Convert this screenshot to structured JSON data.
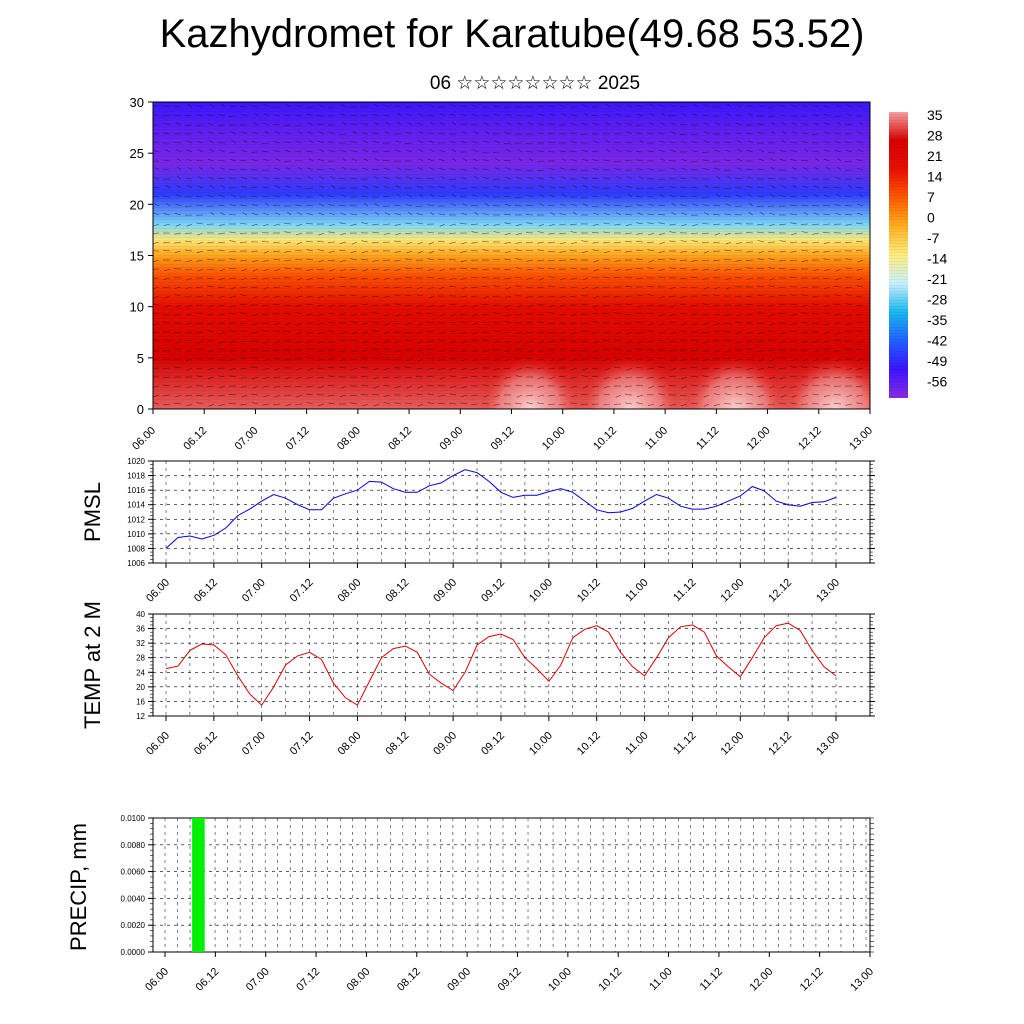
{
  "header": {
    "title": "Kazhydromet for Karatube(49.68 53.52)",
    "subtitle": "06 ☆☆☆☆☆☆☆☆ 2025"
  },
  "colors": {
    "pmsl_line": "#0000dd",
    "temp_line": "#dd0000",
    "precip_bar": "#00ee00",
    "colorbar_stops": [
      "#8a2be2",
      "#3c14ff",
      "#2060ff",
      "#18b8f0",
      "#c8f0ff",
      "#ffee80",
      "#ffb020",
      "#ff5a00",
      "#e81000",
      "#d80000",
      "#f5a0a0"
    ]
  },
  "time_ticks": [
    "06.00",
    "06.12",
    "07.00",
    "07.12",
    "08.00",
    "08.12",
    "09.00",
    "09.12",
    "10.00",
    "10.12",
    "11.00",
    "11.12",
    "12.00",
    "12.12",
    "13.00"
  ],
  "chart_data": [
    {
      "type": "heatmap",
      "id": "cross-section",
      "description_axis": "height",
      "ylim": [
        0,
        30
      ],
      "yticks": [
        0,
        5,
        10,
        15,
        20,
        25,
        30
      ],
      "x": [
        "06.00",
        "06.12",
        "07.00",
        "07.12",
        "08.00",
        "08.12",
        "09.00",
        "09.12",
        "10.00",
        "10.12",
        "11.00",
        "11.12",
        "12.00",
        "12.12",
        "13.00"
      ],
      "colorbar_labels": [
        "35",
        "28",
        "21",
        "14",
        "7",
        "0",
        "-7",
        "-14",
        "-21",
        "-28",
        "-35",
        "-42",
        "-49",
        "-56"
      ],
      "temperature_profile": {
        "heights": [
          0,
          5,
          10,
          13,
          15,
          16.5,
          18,
          21,
          24,
          27,
          30
        ],
        "values": [
          34,
          28,
          20,
          10,
          0,
          -10,
          -25,
          -45,
          -58,
          -55,
          -50
        ]
      },
      "overlay": "wind barbs"
    },
    {
      "type": "line",
      "id": "pmsl",
      "ylabel": "PMSL",
      "ylim": [
        1006,
        1020
      ],
      "yticks": [
        1006,
        1008,
        1010,
        1012,
        1014,
        1016,
        1018,
        1020
      ],
      "xticks": [
        "06.00",
        "06.12",
        "07.00",
        "07.12",
        "08.00",
        "08.12",
        "09.00",
        "09.12",
        "10.00",
        "10.12",
        "11.00",
        "11.12",
        "12.00",
        "12.12",
        "13.00"
      ],
      "series": [
        {
          "x_hours": [
            0,
            3,
            6,
            9,
            12,
            15,
            18,
            21,
            24,
            27,
            30,
            33,
            36,
            39,
            42,
            45,
            48,
            51,
            54,
            57,
            60,
            63,
            66,
            69,
            72,
            75,
            78,
            81,
            84,
            87,
            90,
            93,
            96,
            99,
            102,
            105,
            108,
            111,
            114,
            117,
            120,
            123,
            126,
            129,
            132,
            135,
            138,
            141,
            144,
            147,
            150,
            153,
            156,
            159,
            162,
            165,
            168
          ],
          "values": [
            1008.0,
            1009.5,
            1009.7,
            1009.3,
            1009.8,
            1010.8,
            1012.5,
            1013.4,
            1014.5,
            1015.4,
            1014.9,
            1014.0,
            1013.3,
            1013.3,
            1014.9,
            1015.5,
            1016.0,
            1017.2,
            1017.1,
            1016.2,
            1015.7,
            1015.7,
            1016.6,
            1017.0,
            1018.0,
            1018.8,
            1018.4,
            1017.2,
            1015.7,
            1015.0,
            1015.3,
            1015.3,
            1015.8,
            1016.2,
            1015.7,
            1014.5,
            1013.3,
            1012.9,
            1013.0,
            1013.5,
            1014.5,
            1015.4,
            1014.9,
            1013.8,
            1013.4,
            1013.4,
            1013.8,
            1014.5,
            1015.2,
            1016.5,
            1015.9,
            1014.5,
            1014.0,
            1013.8,
            1014.3,
            1014.4,
            1015.0
          ]
        }
      ]
    },
    {
      "type": "line",
      "id": "temp2m",
      "ylabel": "TEMP at 2 M",
      "ylim": [
        12,
        40
      ],
      "yticks": [
        12,
        16,
        20,
        24,
        28,
        32,
        36,
        40
      ],
      "xticks": [
        "06.00",
        "06.12",
        "07.00",
        "07.12",
        "08.00",
        "08.12",
        "09.00",
        "09.12",
        "10.00",
        "10.12",
        "11.00",
        "11.12",
        "12.00",
        "12.12",
        "13.00"
      ],
      "series": [
        {
          "x_hours": [
            0,
            3,
            6,
            9,
            12,
            15,
            18,
            21,
            24,
            27,
            30,
            33,
            36,
            39,
            42,
            45,
            48,
            51,
            54,
            57,
            60,
            63,
            66,
            69,
            72,
            75,
            78,
            81,
            84,
            87,
            90,
            93,
            96,
            99,
            102,
            105,
            108,
            111,
            114,
            117,
            120,
            123,
            126,
            129,
            132,
            135,
            138,
            141,
            144,
            147,
            150,
            153,
            156,
            159,
            162,
            165,
            168
          ],
          "values": [
            25.0,
            25.7,
            30.0,
            31.8,
            31.5,
            28.8,
            23.0,
            18.0,
            15.0,
            20.0,
            26.0,
            28.5,
            29.5,
            27.5,
            21.0,
            17.0,
            15.0,
            21.5,
            28.0,
            30.5,
            31.2,
            29.5,
            23.5,
            21.0,
            19.0,
            24.0,
            31.5,
            33.8,
            34.5,
            33.0,
            28.0,
            25.0,
            21.5,
            26.0,
            33.5,
            35.8,
            36.8,
            35.0,
            29.5,
            25.5,
            23.0,
            28.0,
            33.5,
            36.5,
            37.0,
            35.0,
            28.5,
            25.5,
            22.8,
            28.0,
            33.5,
            36.8,
            37.5,
            35.5,
            30.0,
            25.5,
            23.0
          ]
        }
      ]
    },
    {
      "type": "bar",
      "id": "precip",
      "ylabel": "PRECIP, mm",
      "ylim": [
        0,
        0.01
      ],
      "yticks": [
        "0.0000",
        "0.0020",
        "0.0040",
        "0.0060",
        "0.0080",
        "0.0100"
      ],
      "xticks": [
        "06.00",
        "06.12",
        "07.00",
        "07.12",
        "08.00",
        "08.12",
        "09.00",
        "09.12",
        "10.00",
        "10.12",
        "11.00",
        "11.12",
        "12.00",
        "12.12",
        "13.00"
      ],
      "bars": [
        {
          "x_hours_start": 6.5,
          "x_hours_end": 9.5,
          "value": 0.01
        }
      ]
    }
  ]
}
